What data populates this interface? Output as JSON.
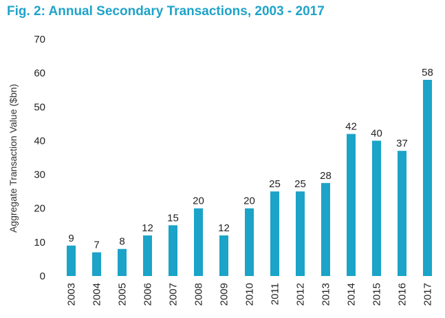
{
  "chart_data": {
    "type": "bar",
    "title": "Fig. 2: Annual Secondary Transactions, 2003 - 2017",
    "xlabel": "",
    "ylabel": "Aggregate Transaction Value ($bn)",
    "ylim": [
      0,
      70
    ],
    "yticks": [
      0,
      10,
      20,
      30,
      40,
      50,
      60,
      70
    ],
    "categories": [
      "2003",
      "2004",
      "2005",
      "2006",
      "2007",
      "2008",
      "2009",
      "2010",
      "2011",
      "2012",
      "2013",
      "2014",
      "2015",
      "2016",
      "2017"
    ],
    "values": [
      9,
      7,
      8,
      12,
      15,
      20,
      12,
      20,
      25,
      25,
      27.5,
      42,
      40,
      37,
      58
    ],
    "data_labels": [
      "9",
      "7",
      "8",
      "12",
      "15",
      "20",
      "12",
      "20",
      "25",
      "25",
      "28",
      "42",
      "40",
      "37",
      "58"
    ],
    "grid": false,
    "bar_color": "#1ba3c8",
    "title_color": "#1fa3c9"
  }
}
